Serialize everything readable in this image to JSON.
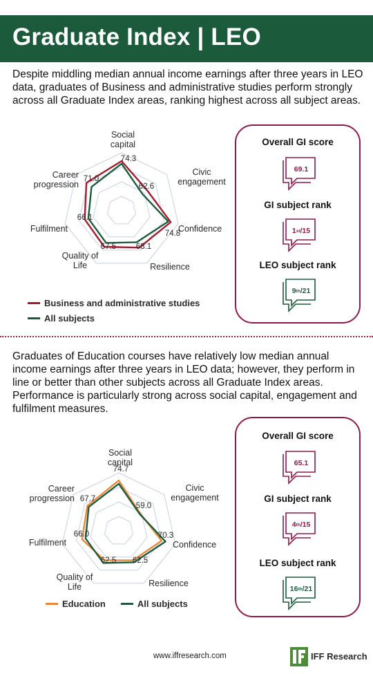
{
  "header": {
    "title": "Graduate Index | LEO"
  },
  "section1": {
    "text": "Despite middling median annual income earnings after three years in LEO data, graduates of Business and administrative studies perform strongly across all Graduate Index areas, ranking highest across all subject areas.",
    "gi": {
      "overall_label": "Overall GI score",
      "overall_value": "69.1",
      "rank_label": "GI subject rank",
      "rank_num": "1",
      "rank_sup": "st",
      "rank_total": "/15",
      "leo_label": "LEO subject rank",
      "leo_num": "9",
      "leo_sup": "th",
      "leo_total": "/21"
    }
  },
  "section2": {
    "text": "Graduates of Education courses have relatively low median annual income earnings after three years in LEO data; however, they perform in line or better than other subjects across all Graduate Index areas. Performance is particularly strong across social capital, engagement and fulfilment measures.",
    "gi": {
      "overall_label": "Overall GI score",
      "overall_value": "65.1",
      "rank_label": "GI subject rank",
      "rank_num": "4",
      "rank_sup": "th",
      "rank_total": "/15",
      "leo_label": "LEO subject rank",
      "leo_num": "16",
      "leo_sup": "th",
      "leo_total": "/21"
    }
  },
  "chart_data": [
    {
      "type": "radar",
      "categories": [
        "Social capital",
        "Civic engagement",
        "Confidence",
        "Resilience",
        "Quality of Life",
        "Fulfilment",
        "Career progression"
      ],
      "range": [
        40,
        80
      ],
      "grid": true,
      "legend_position": "bottom-left",
      "series": [
        {
          "name": "Business and administrative studies",
          "color": "#a01c2e",
          "values": [
            74.3,
            62.6,
            74.8,
            68.1,
            67.5,
            66.1,
            71.0
          ]
        },
        {
          "name": "All subjects",
          "color": "#1c5a3c",
          "values": [
            72.5,
            58.5,
            73.0,
            64.0,
            64.5,
            63.5,
            66.5
          ]
        }
      ]
    },
    {
      "type": "radar",
      "categories": [
        "Social capital",
        "Civic engagement",
        "Confidence",
        "Resilience",
        "Quality of Life",
        "Fulfilment",
        "Career progression"
      ],
      "range": [
        40,
        80
      ],
      "grid": true,
      "legend_position": "bottom-left",
      "series": [
        {
          "name": "Education",
          "color": "#e8883a",
          "values": [
            74.7,
            59.0,
            70.3,
            62.5,
            62.5,
            66.0,
            67.7
          ]
        },
        {
          "name": "All subjects",
          "color": "#1c5a3c",
          "values": [
            72.5,
            58.5,
            73.0,
            64.0,
            64.5,
            63.5,
            66.5
          ]
        }
      ]
    }
  ],
  "footer": {
    "url": "www.iffresearch.com",
    "logo_text": "IFF Research"
  },
  "colors": {
    "header_bg": "#1c5a3c",
    "accent": "#8a1a4a",
    "green": "#1c5a3c",
    "red": "#a01c2e",
    "orange": "#e8883a"
  }
}
